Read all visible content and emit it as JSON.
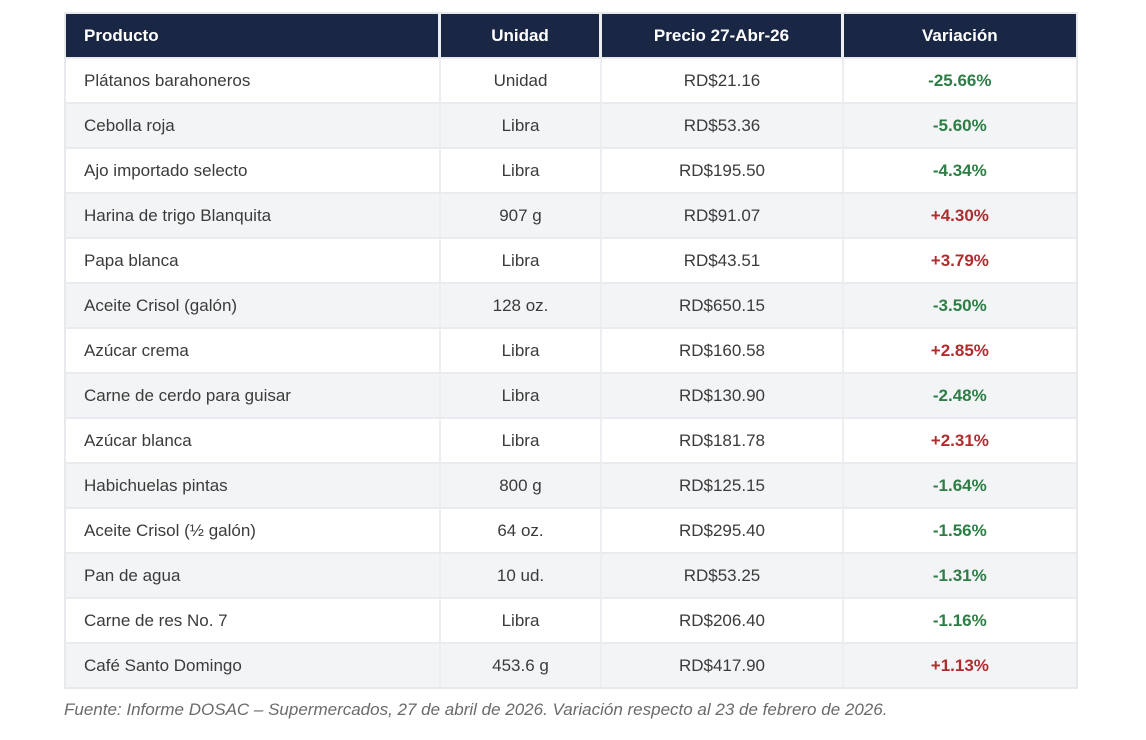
{
  "chart_data": {
    "type": "table",
    "columns": [
      "Producto",
      "Unidad",
      "Precio 27-Abr-26",
      "Variación"
    ],
    "rows": [
      {
        "producto": "Plátanos barahoneros",
        "unidad": "Unidad",
        "precio": "RD$21.16",
        "variacion": "-25.66%",
        "trend": "down"
      },
      {
        "producto": "Cebolla roja",
        "unidad": "Libra",
        "precio": "RD$53.36",
        "variacion": "-5.60%",
        "trend": "down"
      },
      {
        "producto": "Ajo importado selecto",
        "unidad": "Libra",
        "precio": "RD$195.50",
        "variacion": "-4.34%",
        "trend": "down"
      },
      {
        "producto": "Harina de trigo Blanquita",
        "unidad": "907 g",
        "precio": "RD$91.07",
        "variacion": "+4.30%",
        "trend": "up"
      },
      {
        "producto": "Papa blanca",
        "unidad": "Libra",
        "precio": "RD$43.51",
        "variacion": "+3.79%",
        "trend": "up"
      },
      {
        "producto": "Aceite Crisol (galón)",
        "unidad": "128 oz.",
        "precio": "RD$650.15",
        "variacion": "-3.50%",
        "trend": "down"
      },
      {
        "producto": "Azúcar crema",
        "unidad": "Libra",
        "precio": "RD$160.58",
        "variacion": "+2.85%",
        "trend": "up"
      },
      {
        "producto": "Carne de cerdo para guisar",
        "unidad": "Libra",
        "precio": "RD$130.90",
        "variacion": "-2.48%",
        "trend": "down"
      },
      {
        "producto": "Azúcar blanca",
        "unidad": "Libra",
        "precio": "RD$181.78",
        "variacion": "+2.31%",
        "trend": "up"
      },
      {
        "producto": "Habichuelas pintas",
        "unidad": "800 g",
        "precio": "RD$125.15",
        "variacion": "-1.64%",
        "trend": "down"
      },
      {
        "producto": "Aceite Crisol (½ galón)",
        "unidad": "64 oz.",
        "precio": "RD$295.40",
        "variacion": "-1.56%",
        "trend": "down"
      },
      {
        "producto": "Pan de agua",
        "unidad": "10 ud.",
        "precio": "RD$53.25",
        "variacion": "-1.31%",
        "trend": "down"
      },
      {
        "producto": "Carne de res No. 7",
        "unidad": "Libra",
        "precio": "RD$206.40",
        "variacion": "-1.16%",
        "trend": "down"
      },
      {
        "producto": "Café Santo Domingo",
        "unidad": "453.6 g",
        "precio": "RD$417.90",
        "variacion": "+1.13%",
        "trend": "up"
      }
    ],
    "source_note": "Fuente: Informe DOSAC – Supermercados, 27 de abril de 2026. Variación respecto al 23 de febrero de 2026."
  },
  "colors": {
    "header_bg": "#1a2744",
    "header_text": "#ffffff",
    "negative_green": "#2e7d46",
    "positive_red": "#b02d2d",
    "row_alt_bg": "#f3f4f6",
    "grid_line": "#e7e9ec",
    "body_text": "#3b3b3b",
    "note_text": "#6a6a6a"
  }
}
